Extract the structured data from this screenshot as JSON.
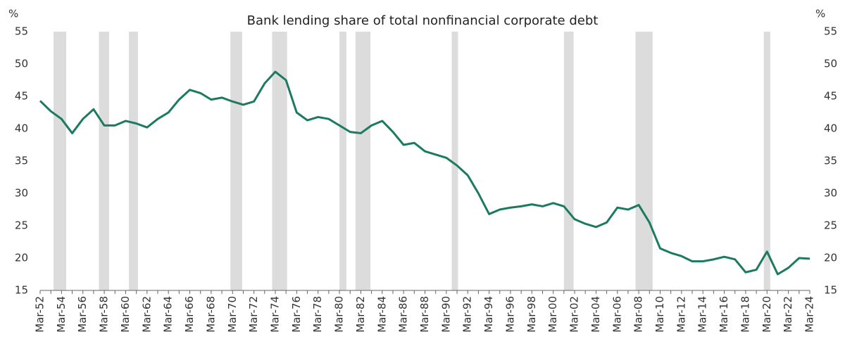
{
  "chart_data": {
    "type": "line",
    "title": "Bank lending share of total nonfinancial corporate debt",
    "y_unit": "%",
    "y2_unit": "%",
    "categories": [
      "Mar-52",
      null,
      "Mar-54",
      null,
      "Mar-56",
      null,
      "Mar-58",
      null,
      "Mar-60",
      null,
      "Mar-62",
      null,
      "Mar-64",
      null,
      "Mar-66",
      null,
      "Mar-68",
      null,
      "Mar-70",
      null,
      "Mar-72",
      null,
      "Mar-74",
      null,
      "Mar-76",
      null,
      "Mar-78",
      null,
      "Mar-80",
      null,
      "Mar-82",
      null,
      "Mar-84",
      null,
      "Mar-86",
      null,
      "Mar-88",
      null,
      "Mar-90",
      null,
      "Mar-92",
      null,
      "Mar-94",
      null,
      "Mar-96",
      null,
      "Mar-98",
      null,
      "Mar-00",
      null,
      "Mar-02",
      null,
      "Mar-04",
      null,
      "Mar-06",
      null,
      "Mar-08",
      null,
      "Mar-10",
      null,
      "Mar-12",
      null,
      "Mar-14",
      null,
      "Mar-16",
      null,
      "Mar-18",
      null,
      "Mar-20",
      null,
      "Mar-22",
      null,
      "Mar-24"
    ],
    "values": [
      44.3,
      42.7,
      41.5,
      39.3,
      41.5,
      43.0,
      40.5,
      40.5,
      41.2,
      40.8,
      40.2,
      41.5,
      42.5,
      44.5,
      46.0,
      45.5,
      44.5,
      44.8,
      44.2,
      43.7,
      44.2,
      47.0,
      48.8,
      47.5,
      42.5,
      41.3,
      41.8,
      41.5,
      40.5,
      39.5,
      39.3,
      40.5,
      41.2,
      39.5,
      37.5,
      37.8,
      36.5,
      36.0,
      35.5,
      34.3,
      32.8,
      30.0,
      26.8,
      27.5,
      27.8,
      28.0,
      28.3,
      28.0,
      28.5,
      28.0,
      26.0,
      25.3,
      24.8,
      25.5,
      27.8,
      27.5,
      28.2,
      25.5,
      21.5,
      20.8,
      20.3,
      19.5,
      19.5,
      19.8,
      20.2,
      19.8,
      17.8,
      18.2,
      21.0,
      17.5,
      18.5,
      20.0,
      19.9
    ],
    "color": "#1b7a5f",
    "shaded": [
      [
        1.25,
        2.44
      ],
      [
        5.5,
        6.45
      ],
      [
        8.3,
        9.15
      ],
      [
        17.8,
        18.9
      ],
      [
        21.7,
        23.1
      ],
      [
        28.0,
        28.65
      ],
      [
        29.5,
        30.9
      ],
      [
        38.5,
        39.1
      ],
      [
        49.0,
        49.9
      ],
      [
        55.7,
        57.3
      ],
      [
        67.7,
        68.3
      ]
    ],
    "shade_color": "#dcdcdc",
    "ylim": [
      15,
      55
    ],
    "yticks": [
      15,
      20,
      25,
      30,
      35,
      40,
      45,
      50,
      55
    ],
    "y2lim": [
      15,
      55
    ],
    "y2ticks": [
      15,
      20,
      25,
      30,
      35,
      40,
      45,
      50,
      55
    ]
  }
}
